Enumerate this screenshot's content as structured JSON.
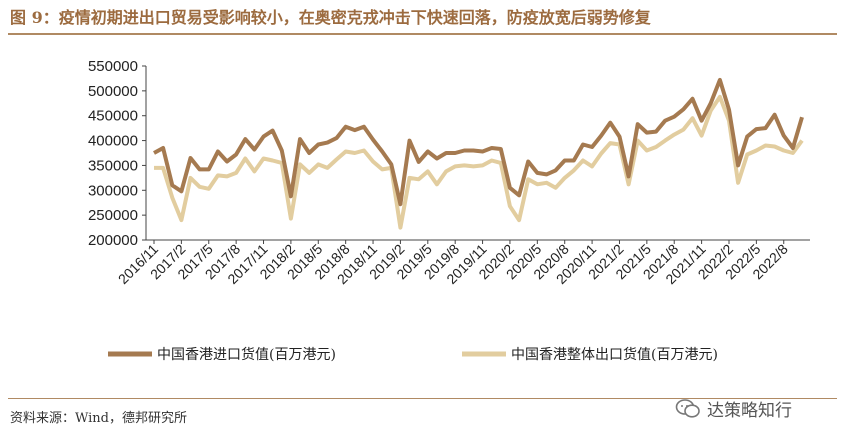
{
  "header": {
    "title": "图 9：疫情初期进出口贸易受影响较小，在奥密克戎冲击下快速回落，防疫放宽后弱势修复"
  },
  "footer": {
    "source": "资料来源：Wind，德邦研究所",
    "watermark": "达策略知行"
  },
  "colors": {
    "title": "#9c6b3f",
    "rule": "#b08a63",
    "import_series": "#a57a50",
    "export_series": "#e2cd9f"
  },
  "chart_data": {
    "type": "line",
    "legend_position": "bottom",
    "grid": false,
    "ylim": [
      200000,
      550000
    ],
    "yticks": [
      200000,
      250000,
      300000,
      350000,
      400000,
      450000,
      500000,
      550000
    ],
    "ytick_labels": [
      "200000",
      "250000",
      "300000",
      "350000",
      "400000",
      "450000",
      "500000",
      "550000"
    ],
    "xtick_labels": [
      "2016/11",
      "2017/2",
      "2017/5",
      "2017/8",
      "2017/11",
      "2018/2",
      "2018/5",
      "2018/8",
      "2018/11",
      "2019/2",
      "2019/5",
      "2019/8",
      "2019/11",
      "2020/2",
      "2020/5",
      "2020/8",
      "2020/11",
      "2021/2",
      "2021/5",
      "2021/8",
      "2021/11",
      "2022/2",
      "2022/5",
      "2022/8"
    ],
    "x": [
      "2016/11",
      "2016/12",
      "2017/1",
      "2017/2",
      "2017/3",
      "2017/4",
      "2017/5",
      "2017/6",
      "2017/7",
      "2017/8",
      "2017/9",
      "2017/10",
      "2017/11",
      "2017/12",
      "2018/1",
      "2018/2",
      "2018/3",
      "2018/4",
      "2018/5",
      "2018/6",
      "2018/7",
      "2018/8",
      "2018/9",
      "2018/10",
      "2018/11",
      "2018/12",
      "2019/1",
      "2019/2",
      "2019/3",
      "2019/4",
      "2019/5",
      "2019/6",
      "2019/7",
      "2019/8",
      "2019/9",
      "2019/10",
      "2019/11",
      "2019/12",
      "2020/1",
      "2020/2",
      "2020/3",
      "2020/4",
      "2020/5",
      "2020/6",
      "2020/7",
      "2020/8",
      "2020/9",
      "2020/10",
      "2020/11",
      "2020/12",
      "2021/1",
      "2021/2",
      "2021/3",
      "2021/4",
      "2021/5",
      "2021/6",
      "2021/7",
      "2021/8",
      "2021/9",
      "2021/10",
      "2021/11",
      "2021/12",
      "2022/1",
      "2022/2",
      "2022/3",
      "2022/4",
      "2022/5",
      "2022/6",
      "2022/7",
      "2022/8",
      "2022/9",
      "2022/10"
    ],
    "series": [
      {
        "name": "中国香港进口货值(百万港元)",
        "values": [
          375000,
          385000,
          310000,
          298000,
          365000,
          342000,
          342000,
          378000,
          358000,
          372000,
          403000,
          382000,
          408000,
          420000,
          380000,
          288000,
          403000,
          375000,
          392000,
          396000,
          405000,
          428000,
          421000,
          428000,
          402000,
          378000,
          352000,
          272000,
          400000,
          357000,
          378000,
          364000,
          375000,
          375000,
          380000,
          380000,
          378000,
          385000,
          383000,
          305000,
          290000,
          358000,
          335000,
          332000,
          340000,
          360000,
          360000,
          392000,
          387000,
          410000,
          436000,
          408000,
          328000,
          433000,
          416000,
          418000,
          440000,
          448000,
          463000,
          484000,
          440000,
          475000,
          522000,
          462000,
          350000,
          408000,
          423000,
          425000,
          452000,
          410000,
          385000,
          447000
        ]
      },
      {
        "name": "中国香港整体出口货值(百万港元)",
        "values": [
          345000,
          345000,
          285000,
          240000,
          325000,
          307000,
          303000,
          330000,
          328000,
          335000,
          364000,
          338000,
          364000,
          360000,
          355000,
          243000,
          352000,
          335000,
          352000,
          345000,
          362000,
          378000,
          375000,
          380000,
          358000,
          342000,
          345000,
          225000,
          325000,
          322000,
          338000,
          312000,
          338000,
          348000,
          350000,
          348000,
          350000,
          360000,
          355000,
          268000,
          240000,
          322000,
          312000,
          315000,
          305000,
          325000,
          340000,
          360000,
          348000,
          374000,
          395000,
          392000,
          312000,
          400000,
          380000,
          387000,
          400000,
          412000,
          422000,
          445000,
          410000,
          460000,
          488000,
          440000,
          315000,
          372000,
          380000,
          390000,
          388000,
          380000,
          375000,
          400000
        ]
      }
    ]
  }
}
